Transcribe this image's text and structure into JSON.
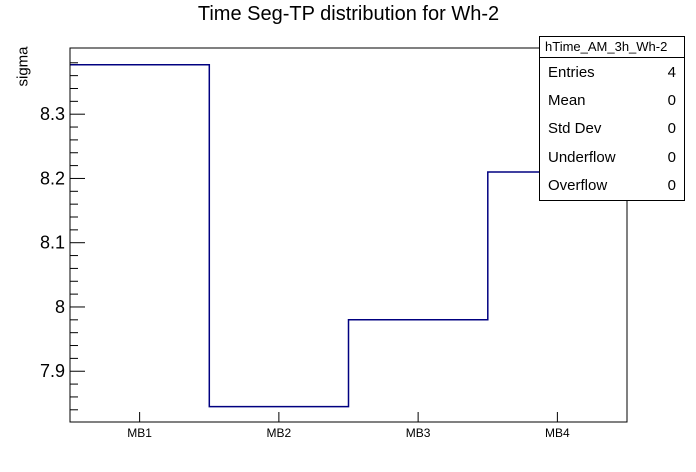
{
  "title": "Time Seg-TP distribution for Wh-2",
  "y_axis": {
    "label": "sigma"
  },
  "x_axis": {
    "labels": [
      "MB1",
      "MB2",
      "MB3",
      "MB4"
    ]
  },
  "stats_box": {
    "header": "hTime_AM_3h_Wh-2",
    "rows": [
      {
        "label": "Entries",
        "value": "4"
      },
      {
        "label": "Mean",
        "value": "0"
      },
      {
        "label": "Std Dev",
        "value": "0"
      },
      {
        "label": "Underflow",
        "value": "0"
      },
      {
        "label": "Overflow",
        "value": "0"
      }
    ]
  },
  "chart_data": {
    "type": "bar",
    "style": "step-histogram-outline",
    "categories": [
      "MB1",
      "MB2",
      "MB3",
      "MB4"
    ],
    "values": [
      8.377,
      7.845,
      7.98,
      8.21
    ],
    "title": "Time Seg-TP distribution for Wh-2",
    "xlabel": "",
    "ylabel": "sigma",
    "ylim": [
      7.821,
      8.403
    ],
    "y_major_ticks": [
      7.9,
      8,
      8.1,
      8.2,
      8.3
    ],
    "y_minor_step": 0.02,
    "grid": false,
    "legend": false,
    "line_color": "#000080",
    "frame_color": "#000000",
    "background_color": "#ffffff"
  }
}
